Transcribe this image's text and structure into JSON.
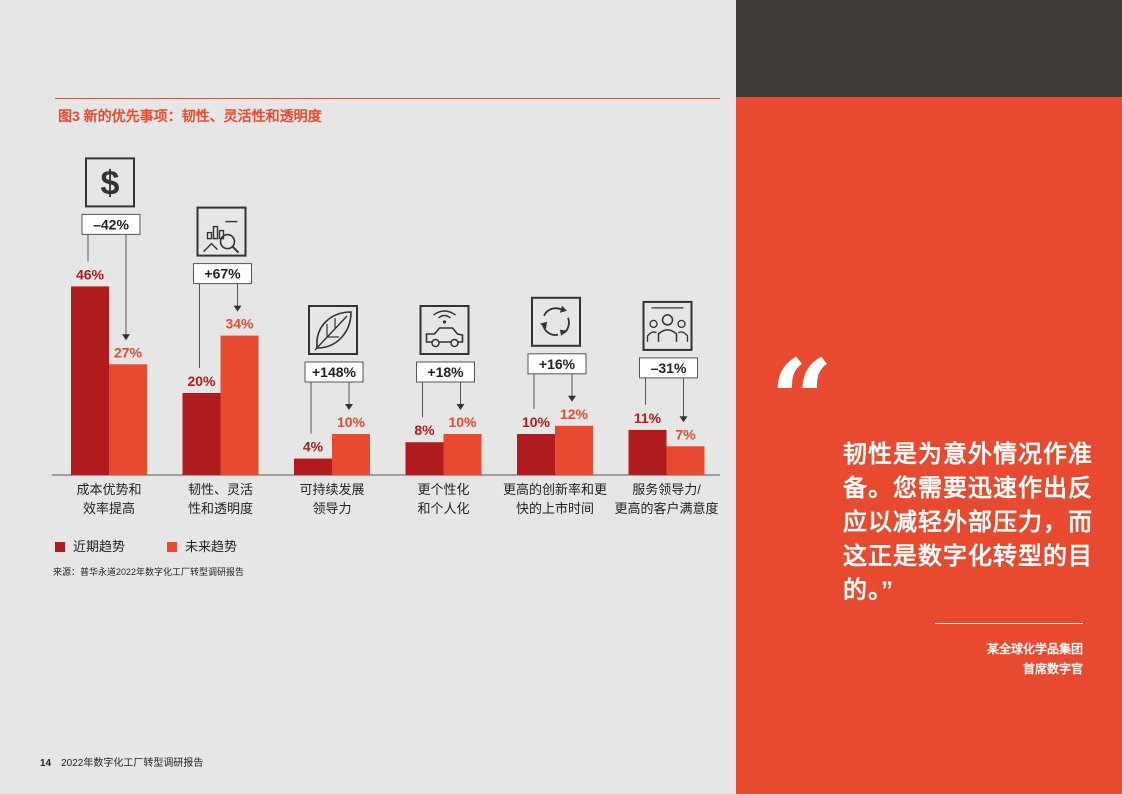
{
  "figure_title": "图3 新的优先事项：韧性、灵活性和透明度",
  "chart_data": {
    "type": "bar",
    "categories": [
      "成本优势和效率提高",
      "韧性、灵活性和透明度",
      "可持续发展领导力",
      "更个性化和个人化",
      "更高的创新率和更快的上市时间",
      "服务领导力/更高的客户满意度"
    ],
    "category_lines": [
      [
        "成本优势和",
        "效率提高"
      ],
      [
        "韧性、灵活",
        "性和透明度"
      ],
      [
        "可持续发展",
        "领导力"
      ],
      [
        "更个性化",
        "和个人化"
      ],
      [
        "更高的创新率和更",
        "快的上市时间"
      ],
      [
        "服务领导力/",
        "更高的客户满意度"
      ]
    ],
    "series": [
      {
        "name": "近期趋势",
        "values": [
          46,
          20,
          4,
          8,
          10,
          11
        ],
        "labels": [
          "46%",
          "20%",
          "4%",
          "8%",
          "10%",
          "11%"
        ]
      },
      {
        "name": "未来趋势",
        "values": [
          27,
          34,
          10,
          10,
          12,
          7
        ],
        "labels": [
          "27%",
          "34%",
          "10%",
          "10%",
          "12%",
          "7%"
        ]
      }
    ],
    "changes": [
      "–42%",
      "+67%",
      "+148%",
      "+18%",
      "+16%",
      "–31%"
    ],
    "icons": [
      "dollar-icon",
      "chart-magnifier-icon",
      "leaf-icon",
      "connected-car-icon",
      "refresh-cycle-icon",
      "customers-icon"
    ],
    "colors": {
      "recent": "#b01c1d",
      "future": "#e84a2f"
    }
  },
  "legend": {
    "recent": "近期趋势",
    "future": "未来趋势"
  },
  "source": "来源：普华永道2022年数字化工厂转型调研报告",
  "footer": {
    "page": "14",
    "title": "2022年数字化工厂转型调研报告"
  },
  "quote": {
    "mark": "“",
    "text": "韧性是为意外情况作准备。您需要迅速作出反应以减轻外部压力，而这正是数字化转型的目的。”",
    "attribution_line1": "某全球化学品集团",
    "attribution_line2": "首席数字官"
  }
}
